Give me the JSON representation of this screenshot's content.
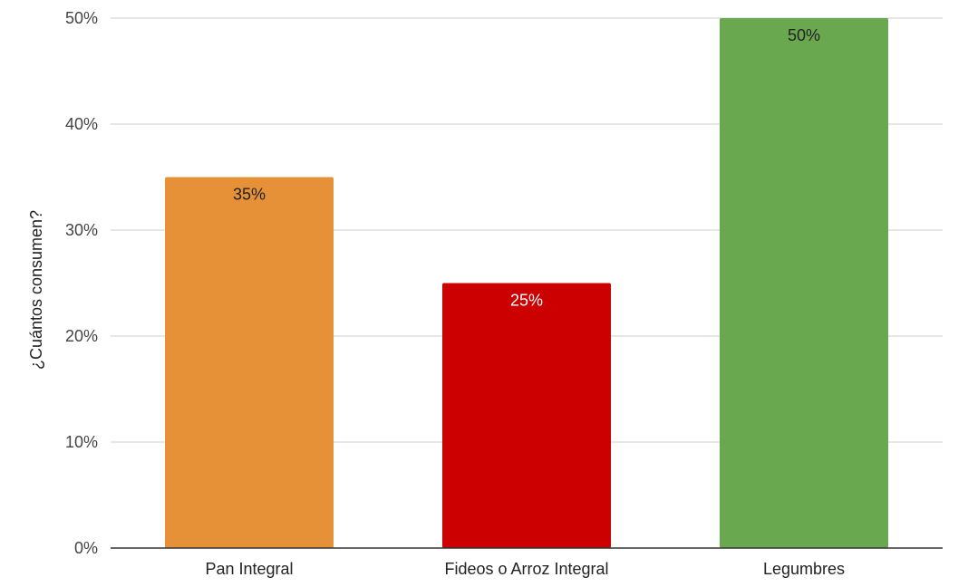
{
  "chart_data": {
    "type": "bar",
    "title": "",
    "xlabel": "",
    "ylabel": "¿Cuántos consumen?",
    "categories": [
      "Pan Integral",
      "Fideos o Arroz Integral",
      "Legumbres"
    ],
    "values": [
      35,
      25,
      50
    ],
    "data_labels": [
      "35%",
      "25%",
      "50%"
    ],
    "bar_colors": [
      "#e69138",
      "#cc0000",
      "#6aa84f"
    ],
    "data_label_colors": [
      "#222222",
      "#ffffff",
      "#222222"
    ],
    "y_ticks": [
      0,
      10,
      20,
      30,
      40,
      50
    ],
    "y_tick_labels": [
      "0%",
      "10%",
      "20%",
      "30%",
      "40%",
      "50%"
    ],
    "ylim": [
      0,
      50
    ],
    "grid": true,
    "legend": "none"
  }
}
